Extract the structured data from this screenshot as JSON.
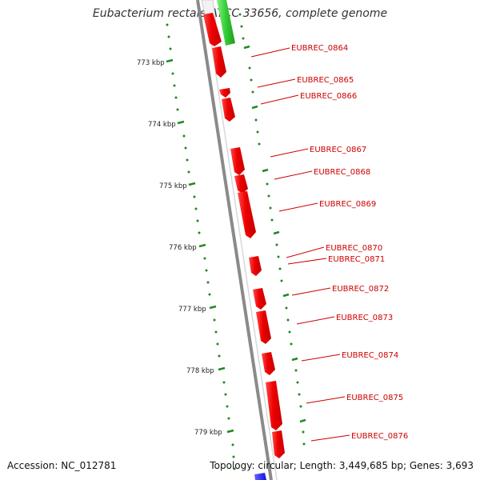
{
  "title": "Eubacterium rectale ATCC 33656, complete genome",
  "accession": "Accession: NC_012781",
  "summary": "Topology: circular; Length: 3,449,685 bp; Genes: 3,693",
  "colors": {
    "forward_gene": "#ff0000",
    "reverse_gene_green": "#33cc33",
    "reverse_gene_blue": "#2222ff",
    "backbone": "#8a8a8a",
    "tick_marks": "#228822",
    "labels": "#cc0000"
  },
  "scale_ticks": [
    "773 kbp",
    "774 kbp",
    "775 kbp",
    "776 kbp",
    "777 kbp",
    "778 kbp",
    "779 kbp"
  ],
  "gene_labels": [
    "EUBREC_0864",
    "EUBREC_0865",
    "EUBREC_0866",
    "EUBREC_0867",
    "EUBREC_0868",
    "EUBREC_0869",
    "EUBREC_0870",
    "EUBREC_0871",
    "EUBREC_0872",
    "EUBREC_0873",
    "EUBREC_0874",
    "EUBREC_0875",
    "EUBREC_0876"
  ]
}
